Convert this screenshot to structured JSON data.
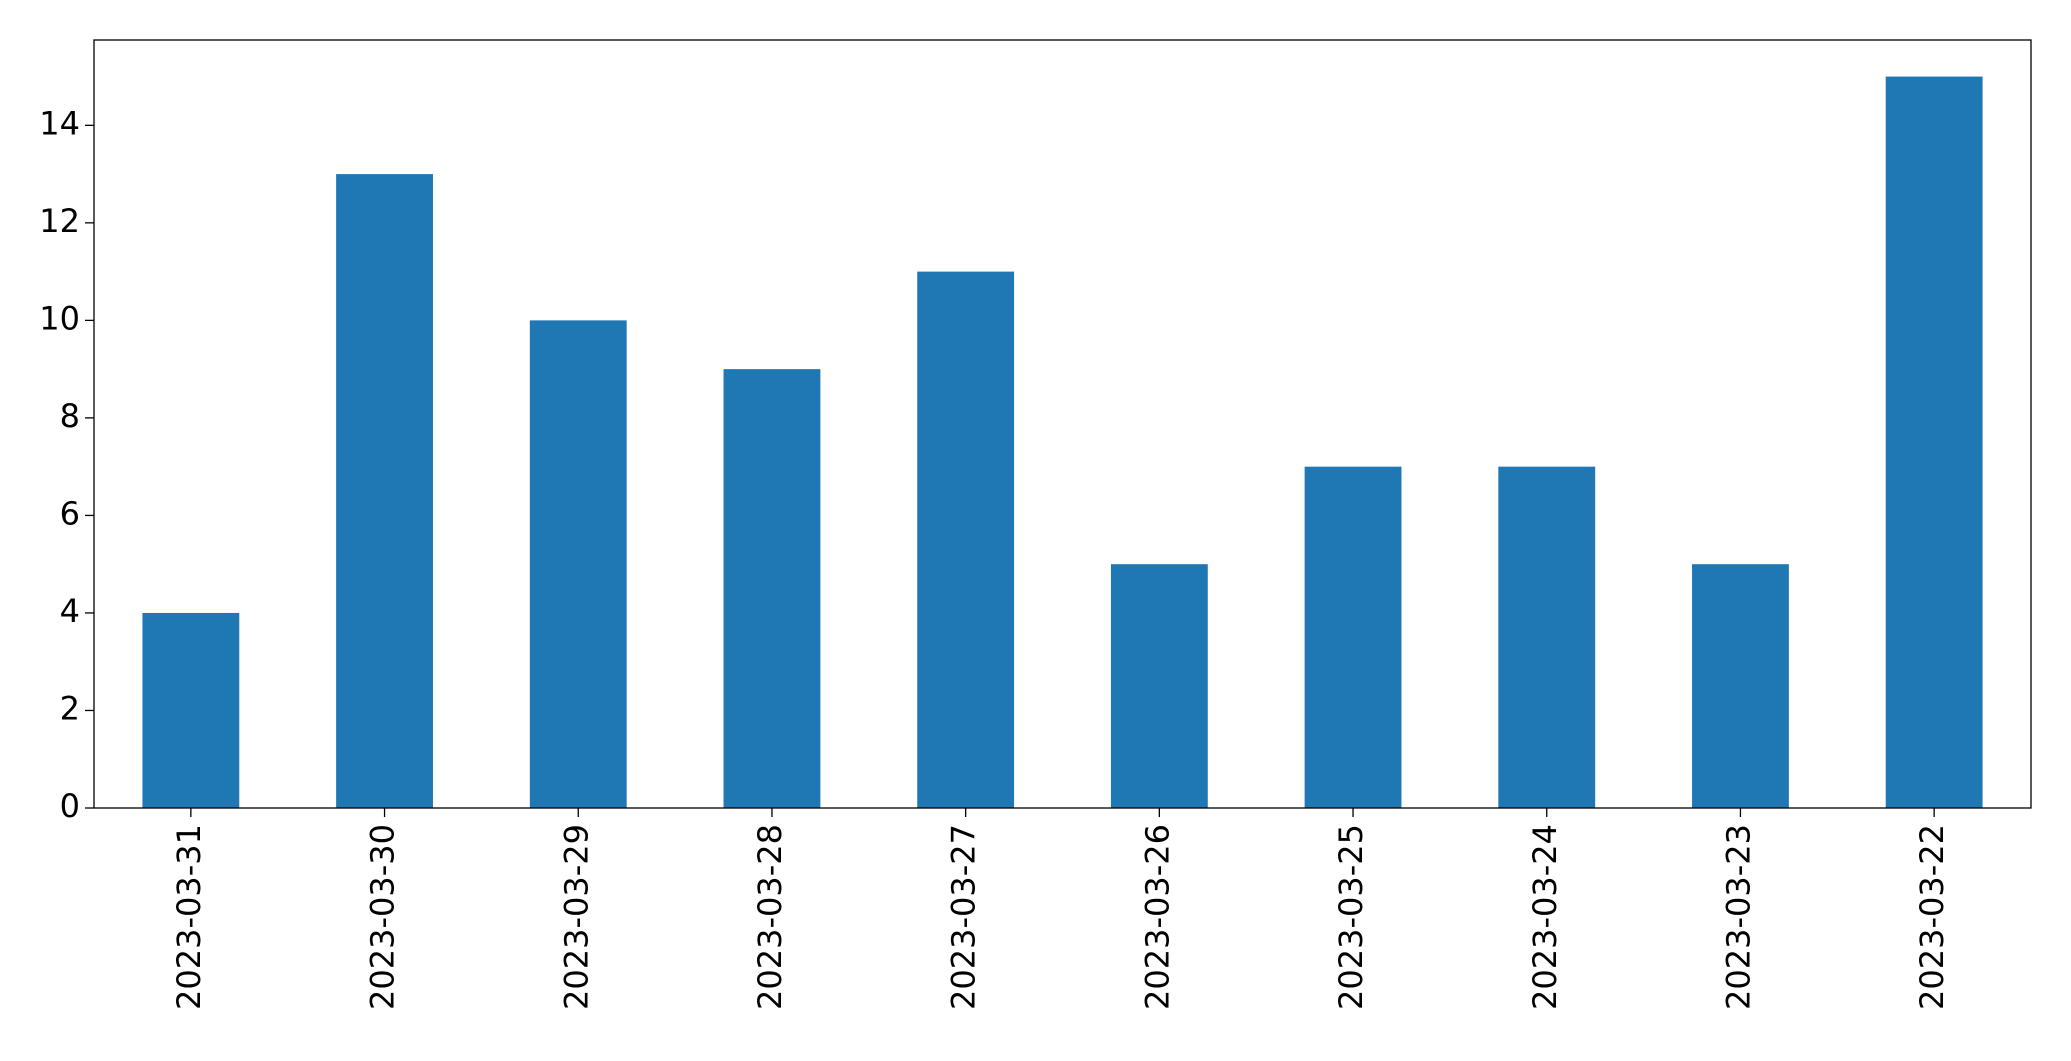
{
  "chart_data": {
    "type": "bar",
    "categories": [
      "2023-03-31",
      "2023-03-30",
      "2023-03-29",
      "2023-03-28",
      "2023-03-27",
      "2023-03-26",
      "2023-03-25",
      "2023-03-24",
      "2023-03-23",
      "2023-03-22"
    ],
    "values": [
      4,
      13,
      10,
      9,
      11,
      5,
      7,
      7,
      5,
      15
    ],
    "color": "#1f77b4",
    "ylim": [
      0,
      15.75
    ],
    "yticks": [
      0,
      2,
      4,
      6,
      8,
      10,
      12,
      14
    ],
    "grid": false
  }
}
